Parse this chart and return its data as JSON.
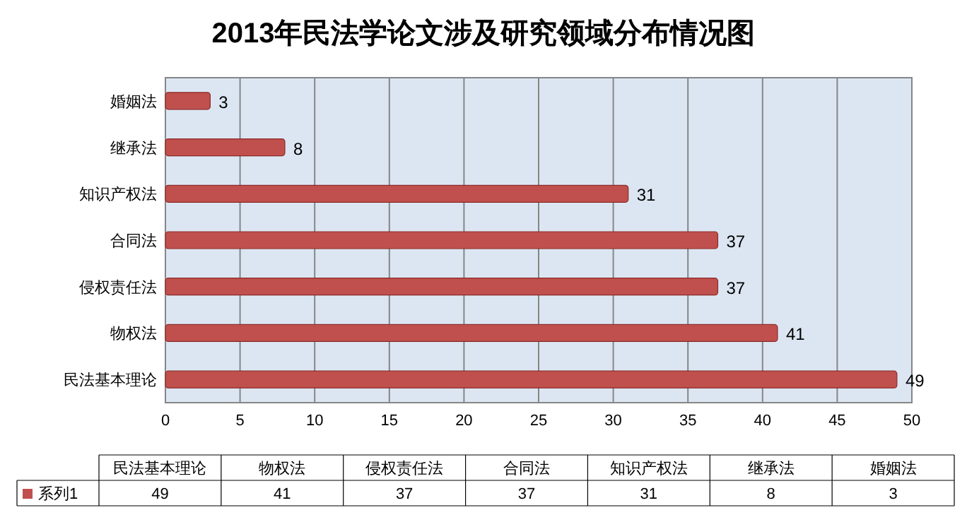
{
  "chart_data": {
    "type": "bar",
    "orientation": "horizontal",
    "title": "2013年民法学论文涉及研究领域分布情况图",
    "categories": [
      "婚姻法",
      "继承法",
      "知识产权法",
      "合同法",
      "侵权责任法",
      "物权法",
      "民法基本理论"
    ],
    "series": [
      {
        "name": "系列1",
        "color": "#c0504d",
        "values": [
          3,
          8,
          31,
          37,
          37,
          41,
          49
        ]
      }
    ],
    "xlim": [
      0,
      50
    ],
    "xticks": [
      0,
      5,
      10,
      15,
      20,
      25,
      30,
      35,
      40,
      45,
      50
    ],
    "grid": "x",
    "data_labels": true,
    "legend": "bottom",
    "annotations": [
      "49",
      "41",
      "37",
      "37",
      "31",
      "8",
      "3"
    ]
  }
}
